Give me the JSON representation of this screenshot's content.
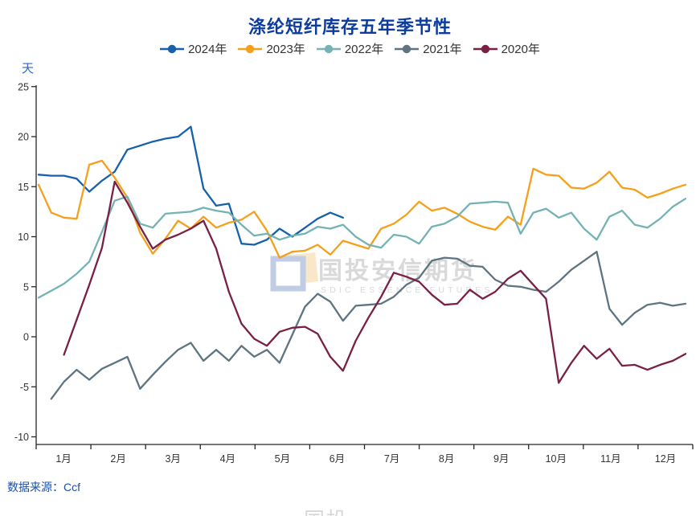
{
  "title": "涤纶短纤库存五年季节性",
  "unit_label": "天",
  "source_note": "数据来源：Ccf",
  "watermark": {
    "cn_text": "国投安信期货",
    "en_text": "SDIC ESSENCE FUTURES",
    "logo_blue": "#bdcbe3",
    "logo_orange": "#f7ddb2",
    "text_color": "#d7d7d7"
  },
  "colors": {
    "title_blue": "#0c3c9e",
    "unit_blue": "#2b66d9",
    "source_blue": "#1a4fa8",
    "axis": "#262626",
    "tick_label": "#333333"
  },
  "chart_data": {
    "type": "line",
    "title": "涤纶短纤库存五年季节性",
    "ylabel": "天",
    "ylim": [
      -10,
      25
    ],
    "y_ticks": [
      25,
      20,
      15,
      10,
      5,
      0,
      -5,
      -10
    ],
    "x_categories": [
      "1月",
      "2月",
      "3月",
      "4月",
      "5月",
      "6月",
      "7月",
      "8月",
      "9月",
      "10月",
      "11月",
      "12月"
    ],
    "points_per_year": 52,
    "legend_position": "top",
    "grid": false,
    "series": [
      {
        "name": "2024年",
        "color": "#1760ab",
        "start_week": 1,
        "values": [
          16.2,
          16.1,
          16.1,
          15.8,
          14.5,
          15.6,
          16.5,
          18.7,
          19.1,
          19.5,
          19.8,
          20.0,
          21.0,
          14.8,
          13.1,
          13.3,
          9.3,
          9.2,
          9.7,
          10.8,
          10.0,
          10.9,
          11.8,
          12.4,
          11.9
        ]
      },
      {
        "name": "2023年",
        "color": "#f5a01c",
        "start_week": 1,
        "values": [
          15.2,
          12.4,
          11.9,
          11.8,
          17.2,
          17.6,
          15.9,
          13.9,
          10.4,
          8.3,
          9.8,
          11.6,
          10.8,
          12.0,
          10.9,
          11.4,
          11.7,
          12.5,
          10.6,
          7.9,
          8.5,
          8.6,
          9.2,
          8.2,
          9.6,
          9.2,
          8.8,
          10.8,
          11.3,
          12.2,
          13.5,
          12.6,
          12.9,
          12.3,
          11.5,
          11.0,
          10.7,
          12.0,
          11.2,
          16.8,
          16.2,
          16.1,
          14.9,
          14.8,
          15.4,
          16.5,
          14.9,
          14.7,
          13.9,
          14.3,
          14.8,
          15.2
        ]
      },
      {
        "name": "2022年",
        "color": "#74b2b4",
        "start_week": 1,
        "values": [
          3.9,
          4.6,
          5.3,
          6.3,
          7.5,
          10.5,
          13.6,
          14.0,
          11.3,
          10.9,
          12.3,
          12.4,
          12.5,
          12.9,
          12.6,
          12.4,
          11.2,
          10.1,
          10.3,
          9.7,
          10.1,
          10.3,
          11.0,
          10.8,
          11.2,
          10.0,
          9.2,
          8.9,
          10.2,
          10.0,
          9.3,
          11.0,
          11.3,
          12.0,
          13.3,
          13.4,
          13.5,
          13.4,
          10.3,
          12.4,
          12.8,
          11.9,
          12.4,
          10.8,
          9.7,
          12.0,
          12.6,
          11.2,
          10.9,
          11.8,
          13.0,
          13.8
        ]
      },
      {
        "name": "2021年",
        "color": "#5e7480",
        "start_week": 2,
        "values": [
          -6.2,
          -4.5,
          -3.3,
          -4.3,
          -3.2,
          -2.6,
          -2.0,
          -5.2,
          -3.8,
          -2.5,
          -1.3,
          -0.6,
          -2.4,
          -1.3,
          -2.4,
          -0.9,
          -2.0,
          -1.3,
          -2.6,
          0.2,
          3.0,
          4.3,
          3.5,
          1.6,
          3.1,
          3.2,
          3.3,
          4.0,
          5.2,
          5.9,
          7.6,
          7.9,
          7.8,
          7.1,
          7.0,
          5.7,
          5.1,
          5.0,
          4.7,
          4.5,
          5.5,
          6.7,
          7.6,
          8.5,
          2.8,
          1.2,
          2.4,
          3.2,
          3.4,
          3.1,
          3.3
        ]
      },
      {
        "name": "2020年",
        "color": "#7a2046",
        "start_week": 3,
        "values": [
          -1.8,
          1.7,
          5.2,
          8.9,
          15.5,
          13.4,
          11.0,
          8.8,
          9.7,
          10.2,
          10.8,
          11.6,
          8.8,
          4.5,
          1.3,
          -0.2,
          -0.9,
          0.5,
          0.9,
          1.0,
          0.3,
          -2.0,
          -3.4,
          -0.4,
          1.9,
          4.0,
          6.4,
          6.0,
          5.5,
          4.2,
          3.2,
          3.3,
          4.7,
          3.8,
          4.5,
          5.8,
          6.6,
          5.2,
          3.8,
          -4.6,
          -2.6,
          -0.9,
          -2.2,
          -1.2,
          -2.9,
          -2.8,
          -3.3,
          -2.8,
          -2.4,
          -1.7
        ]
      }
    ]
  }
}
